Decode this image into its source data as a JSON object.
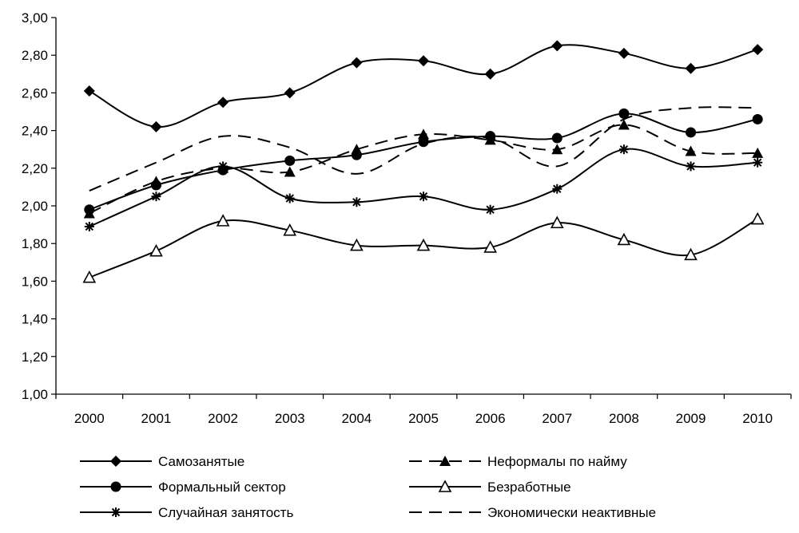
{
  "chart_data": {
    "type": "line",
    "title": "",
    "xlabel": "",
    "ylabel": "",
    "x": [
      "2000",
      "2001",
      "2002",
      "2003",
      "2004",
      "2005",
      "2006",
      "2007",
      "2008",
      "2009",
      "2010"
    ],
    "ylim": [
      1.0,
      3.0
    ],
    "yticks": [
      "1,00",
      "1,20",
      "1,40",
      "1,60",
      "1,80",
      "2,00",
      "2,20",
      "2,40",
      "2,60",
      "2,80",
      "3,00"
    ],
    "grid": false,
    "legend_position": "bottom",
    "series": [
      {
        "name": "Самозанятые",
        "marker": "diamond",
        "dash": "solid",
        "values": [
          2.61,
          2.42,
          2.55,
          2.6,
          2.76,
          2.77,
          2.7,
          2.85,
          2.81,
          2.73,
          2.83
        ]
      },
      {
        "name": "Формальный сектор",
        "marker": "circle",
        "dash": "solid",
        "values": [
          1.98,
          2.11,
          2.19,
          2.24,
          2.27,
          2.34,
          2.37,
          2.36,
          2.49,
          2.39,
          2.46
        ]
      },
      {
        "name": "Случайная занятость",
        "marker": "asterisk",
        "dash": "solid",
        "values": [
          1.89,
          2.05,
          2.21,
          2.04,
          2.02,
          2.05,
          1.98,
          2.09,
          2.3,
          2.21,
          2.23
        ]
      },
      {
        "name": "Неформалы по найму",
        "marker": "triangle-filled",
        "dash": "dashed",
        "values": [
          1.96,
          2.13,
          2.2,
          2.18,
          2.3,
          2.38,
          2.35,
          2.3,
          2.43,
          2.29,
          2.28
        ]
      },
      {
        "name": "Безработные",
        "marker": "triangle-open",
        "dash": "solid",
        "values": [
          1.62,
          1.76,
          1.92,
          1.87,
          1.79,
          1.79,
          1.78,
          1.91,
          1.82,
          1.74,
          1.93
        ]
      },
      {
        "name": "Экономически неактивные",
        "marker": "none",
        "dash": "dashed",
        "values": [
          2.08,
          2.23,
          2.37,
          2.31,
          2.17,
          2.33,
          2.36,
          2.21,
          2.46,
          2.52,
          2.52
        ]
      }
    ]
  }
}
